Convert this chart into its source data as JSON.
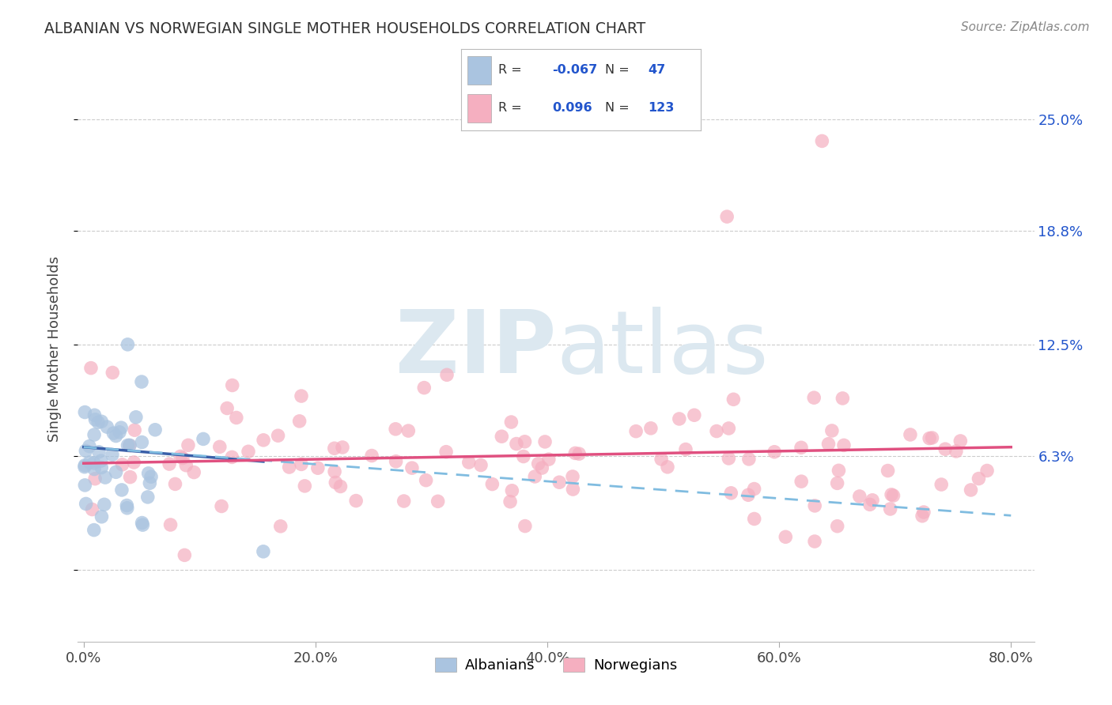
{
  "title": "ALBANIAN VS NORWEGIAN SINGLE MOTHER HOUSEHOLDS CORRELATION CHART",
  "source": "Source: ZipAtlas.com",
  "ylabel": "Single Mother Households",
  "xlim": [
    -0.005,
    0.82
  ],
  "ylim": [
    -0.04,
    0.285
  ],
  "ytick_vals": [
    0.0,
    0.063,
    0.125,
    0.188,
    0.25
  ],
  "ytick_labels": [
    "",
    "6.3%",
    "12.5%",
    "18.8%",
    "25.0%"
  ],
  "xtick_vals": [
    0.0,
    0.2,
    0.4,
    0.6,
    0.8
  ],
  "xtick_labels": [
    "0.0%",
    "20.0%",
    "40.0%",
    "60.0%",
    "80.0%"
  ],
  "albanian_color": "#aac4e0",
  "norwegian_color": "#f5afc0",
  "albanian_line_color": "#3a5fa8",
  "norwegian_line_color": "#e05080",
  "dashed_line_color": "#80bce0",
  "watermark_color": "#dce8f0",
  "legend_R_color": "#333333",
  "legend_val_color": "#2255cc",
  "albanian_R": -0.067,
  "albanian_N": 47,
  "norwegian_R": 0.096,
  "norwegian_N": 123,
  "alb_trend_x0": 0.0,
  "alb_trend_x1": 0.155,
  "alb_trend_y0": 0.068,
  "alb_trend_y1": 0.06,
  "dash_trend_x0": 0.0,
  "dash_trend_x1": 0.8,
  "dash_trend_y0": 0.068,
  "dash_trend_y1": 0.03,
  "nor_trend_x0": 0.0,
  "nor_trend_x1": 0.8,
  "nor_trend_y0": 0.059,
  "nor_trend_y1": 0.068
}
